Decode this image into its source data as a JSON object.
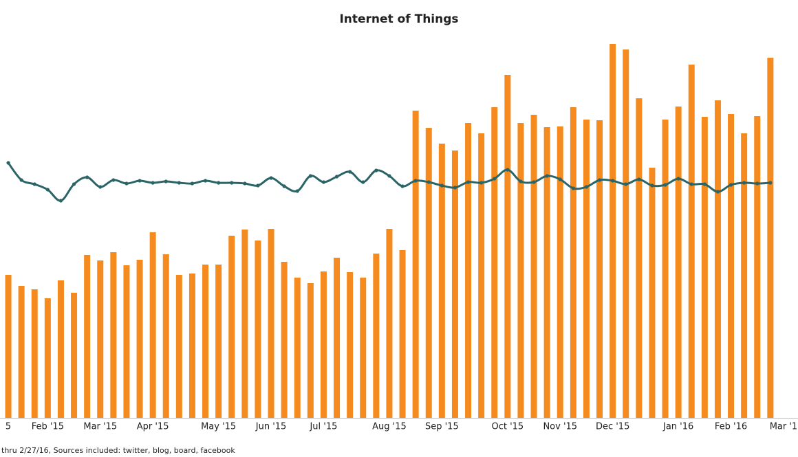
{
  "chart_data": {
    "type": "bar",
    "title": "Internet of Things",
    "source_note": "thru 2/27/16, Sources included: twitter, blog, board, facebook",
    "categories": [
      "5",
      null,
      null,
      "Feb '15",
      null,
      null,
      null,
      "Mar '15",
      null,
      null,
      null,
      "Apr '15",
      null,
      null,
      null,
      null,
      "May '15",
      null,
      null,
      null,
      "Jun '15",
      null,
      null,
      null,
      "Jul '15",
      null,
      null,
      null,
      null,
      "Aug '15",
      null,
      null,
      null,
      "Sep '15",
      null,
      null,
      null,
      null,
      "Oct '15",
      null,
      null,
      null,
      "Nov '15",
      null,
      null,
      null,
      "Dec '15",
      null,
      null,
      null,
      null,
      "Jan '16",
      null,
      null,
      null,
      "Feb '16",
      null,
      null,
      null,
      "Mar '1"
    ],
    "ylim": [
      0,
      550
    ],
    "series": [
      {
        "type": "bar",
        "color": "#f58a1f",
        "values": [
          208,
          192,
          187,
          174,
          200,
          182,
          237,
          229,
          241,
          222,
          230,
          270,
          238,
          208,
          210,
          223,
          223,
          265,
          274,
          258,
          275,
          227,
          204,
          196,
          213,
          233,
          212,
          204,
          239,
          275,
          244,
          447,
          422,
          399,
          389,
          429,
          414,
          452,
          499,
          429,
          441,
          423,
          424,
          452,
          434,
          433,
          544,
          536,
          465,
          364,
          434,
          453,
          514,
          438,
          462,
          442,
          414,
          439,
          524,
          null
        ]
      },
      {
        "type": "line",
        "color": "#2a6466",
        "values": [
          371,
          346,
          340,
          332,
          316,
          340,
          350,
          336,
          346,
          341,
          345,
          342,
          344,
          342,
          341,
          345,
          342,
          342,
          341,
          338,
          349,
          337,
          330,
          352,
          343,
          351,
          358,
          343,
          360,
          352,
          337,
          345,
          343,
          338,
          335,
          343,
          342,
          348,
          361,
          344,
          343,
          352,
          347,
          334,
          336,
          346,
          345,
          340,
          347,
          338,
          339,
          348,
          340,
          340,
          329,
          339,
          342,
          341,
          342,
          null
        ]
      }
    ]
  }
}
